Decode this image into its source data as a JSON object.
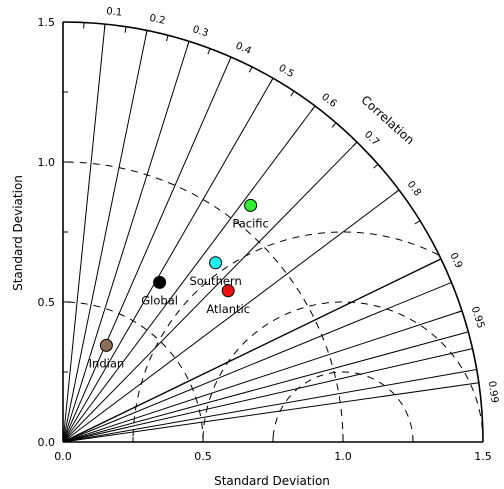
{
  "chart_data": {
    "type": "scatter",
    "subtype": "taylor-diagram",
    "xlabel": "Standard Deviation",
    "ylabel": "Standard Deviation",
    "correlation_label": "Correlation",
    "xlim": [
      0,
      1.5
    ],
    "ylim": [
      0,
      1.5
    ],
    "std_ticks": [
      "0.0",
      "0.5",
      "1.0",
      "1.5"
    ],
    "std_tick_values": [
      0,
      0.5,
      1.0,
      1.5
    ],
    "correlation_ticks": [
      "0.1",
      "0.2",
      "0.3",
      "0.4",
      "0.5",
      "0.6",
      "0.7",
      "0.8",
      "0.9",
      "0.95",
      "0.99"
    ],
    "correlation_lines": [
      0.1,
      0.2,
      0.3,
      0.4,
      0.5,
      0.6,
      0.7,
      0.8,
      0.9,
      0.925,
      0.95,
      0.965,
      0.975,
      0.985,
      0.99
    ],
    "std_dev_arcs": [
      0.5,
      1.0
    ],
    "std_dev_arcs_style": "dashed",
    "rms_arcs": [
      0.25,
      0.5,
      0.75
    ],
    "rms_arcs_style": "dashed",
    "reference_std": 1.0,
    "points": [
      {
        "name": "Pacific",
        "x": 0.67,
        "y": 0.845,
        "color": "#33ee33"
      },
      {
        "name": "Southern",
        "x": 0.545,
        "y": 0.64,
        "color": "#22eeee"
      },
      {
        "name": "Atlantic",
        "x": 0.59,
        "y": 0.54,
        "color": "#ee1111"
      },
      {
        "name": "Global",
        "x": 0.345,
        "y": 0.57,
        "color": "#000000"
      },
      {
        "name": "Indian",
        "x": 0.155,
        "y": 0.345,
        "color": "#8b6e5a"
      }
    ]
  }
}
